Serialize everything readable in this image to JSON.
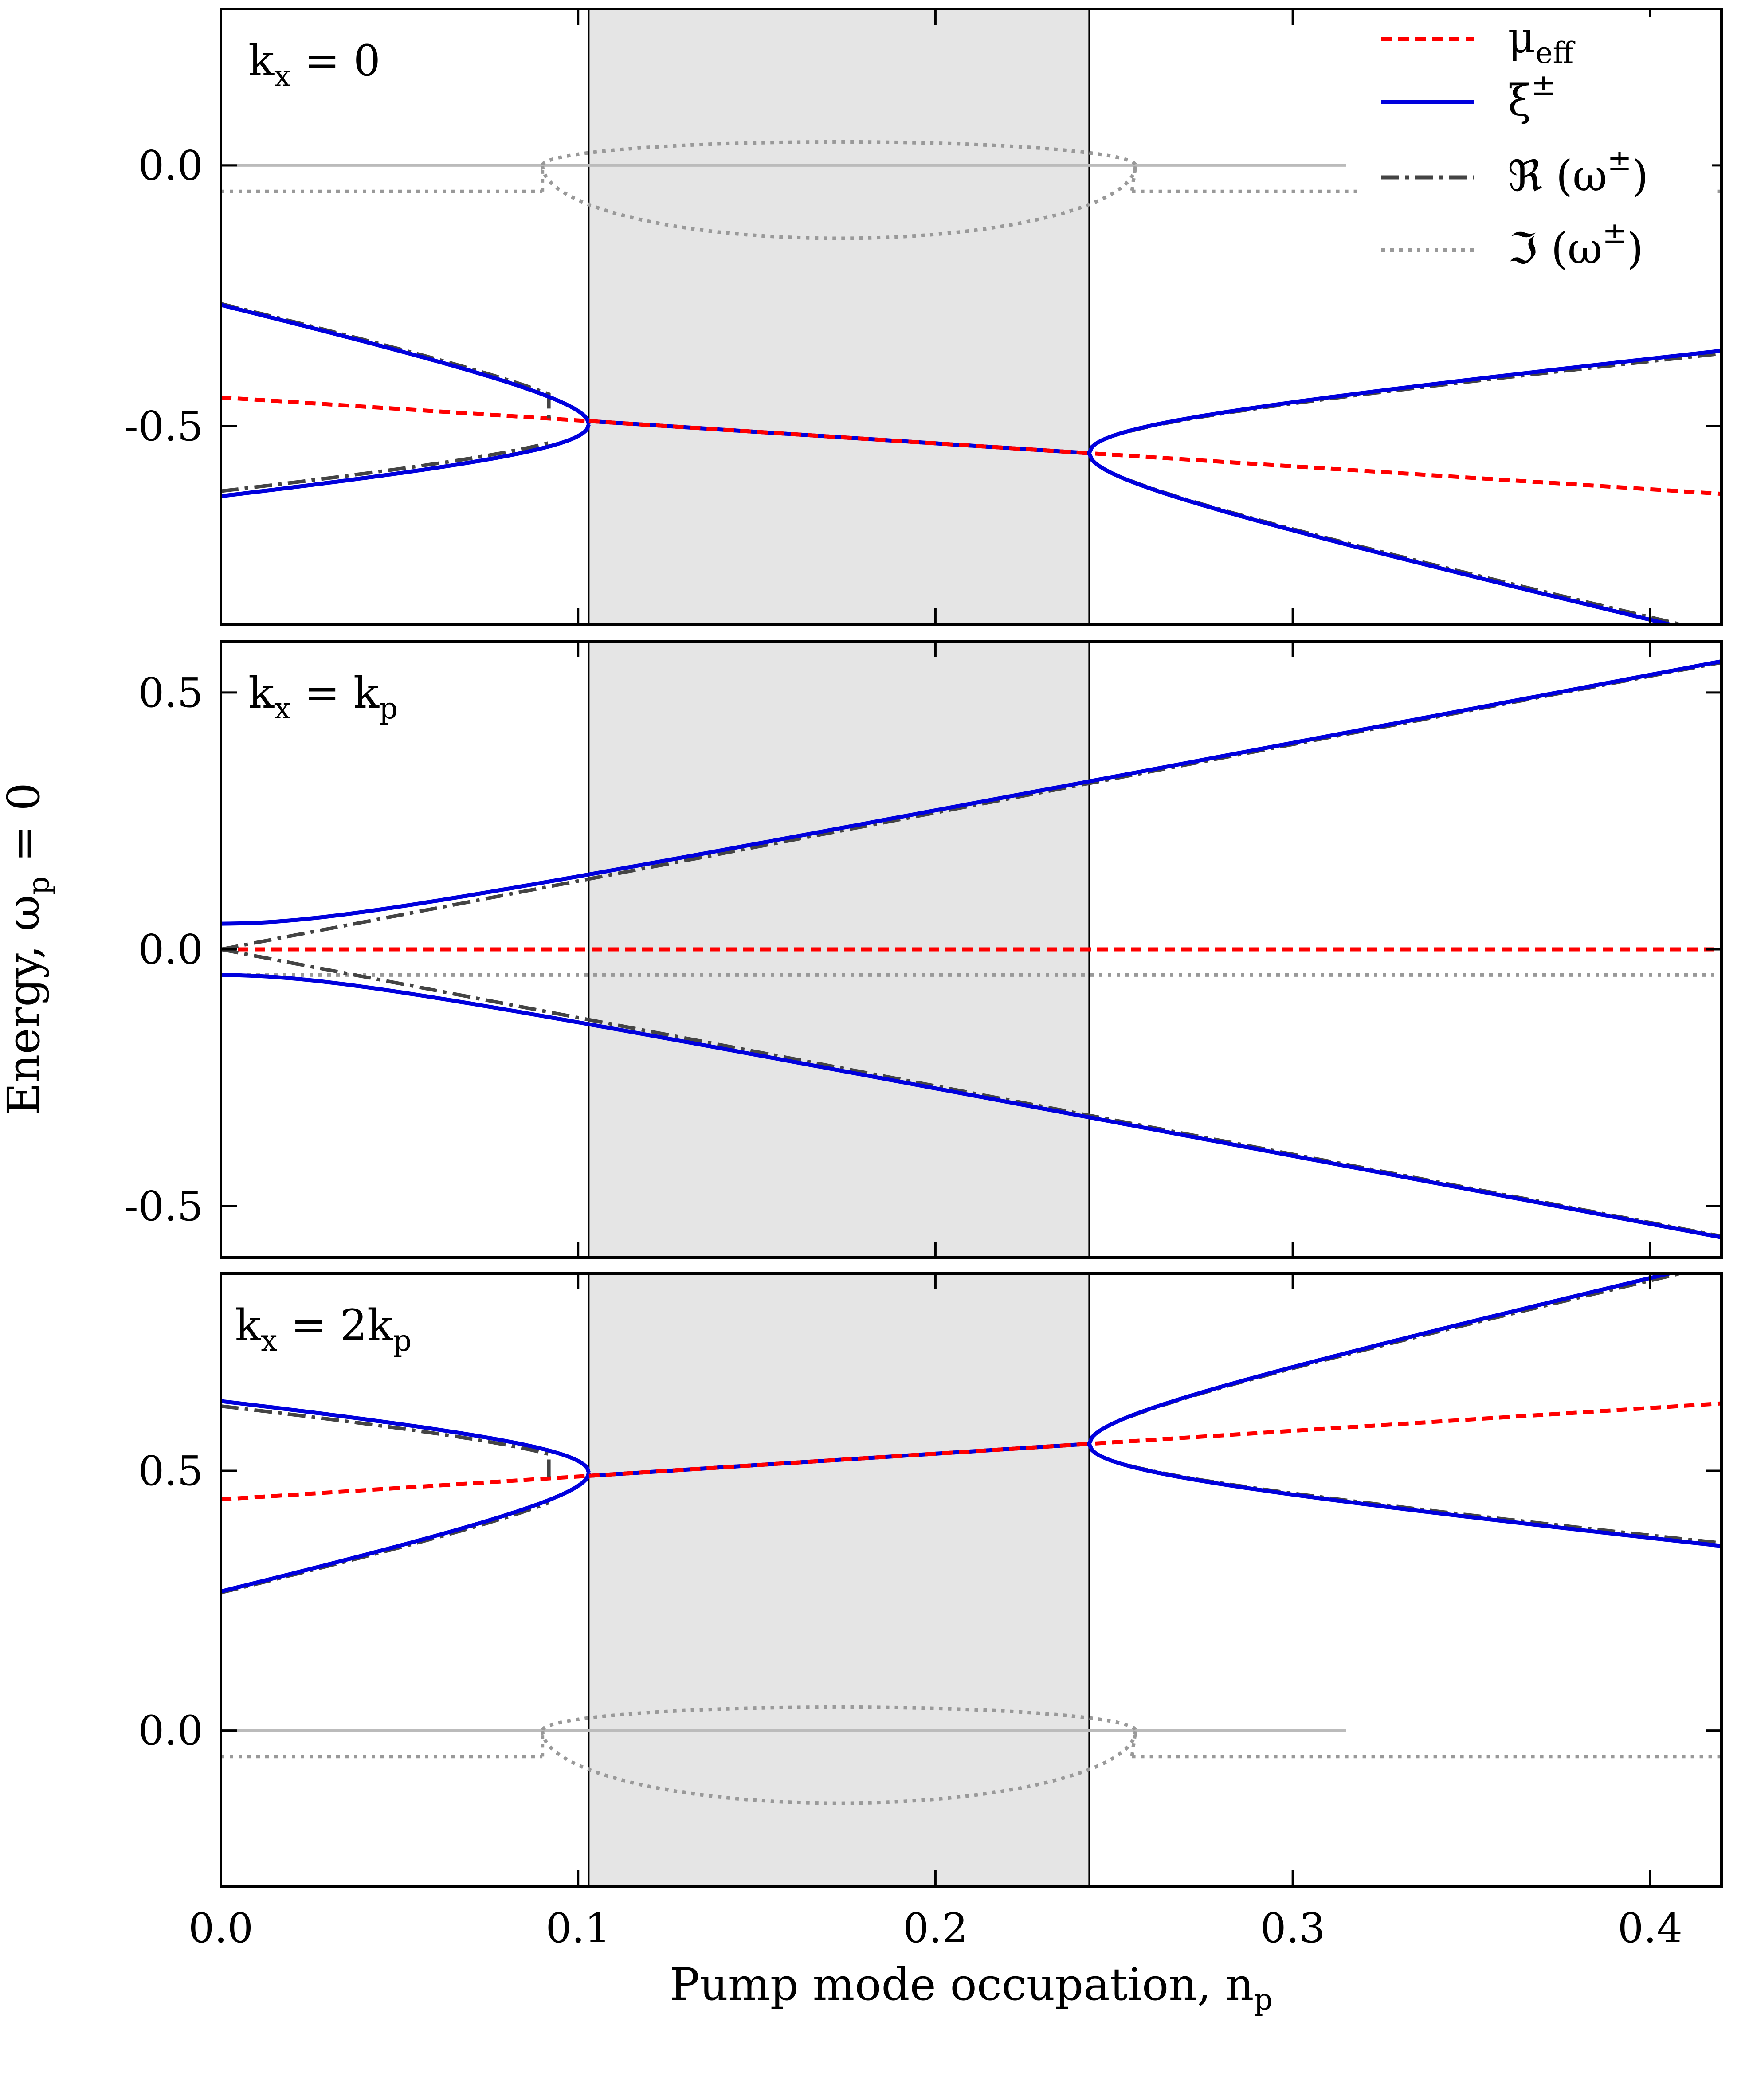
{
  "chart_data": {
    "type": "line",
    "xlabel": "Pump mode occupation, n",
    "xlabel_sub": "p",
    "ylabel": "Energy, ω",
    "ylabel_sub": "p",
    "ylabel_suffix": " = 0",
    "xlim": [
      0,
      0.42
    ],
    "x_ticks": [
      0.0,
      0.1,
      0.2,
      0.3,
      0.4
    ],
    "x_tick_labels": [
      "0.0",
      "0.1",
      "0.2",
      "0.3",
      "0.4"
    ],
    "unstable_region": [
      0.103,
      0.243
    ],
    "colors": {
      "mu_eff": "#ff0000",
      "xi": "#0000dd",
      "re_omega": "#444444",
      "im_omega": "#999999",
      "zero_line": "#bbbbbb",
      "shade": "#e5e5e5"
    },
    "legend": [
      {
        "key": "mu_eff",
        "label": "μ",
        "sub": "eff",
        "sup": ""
      },
      {
        "key": "xi",
        "label": "ξ",
        "sub": "",
        "sup": "±"
      },
      {
        "key": "re_omega",
        "label": "ℜ (ω",
        "sub": "",
        "sup": "±",
        "tail": ")"
      },
      {
        "key": "im_omega",
        "label": "ℑ (ω",
        "sub": "",
        "sup": "±",
        "tail": ")"
      }
    ],
    "panels": [
      {
        "label": "k",
        "label_sub": "x",
        "label_suffix": " = 0",
        "ylim": [
          -0.88,
          0.3
        ],
        "y_ticks": [
          0.0,
          -0.5
        ],
        "y_tick_labels": [
          "0.0",
          "-0.5"
        ],
        "params": {
          "mu0": -0.445,
          "mu_slope": -0.44,
          "A": 0.1833,
          "B": 0.3467,
          "im_out": -0.05,
          "im_in_top": 0.045,
          "im_in_bot": -0.14
        }
      },
      {
        "label": "k",
        "label_sub": "x",
        "label_suffix": " = k",
        "label_suffix_sub": "p",
        "ylim": [
          -0.6,
          0.6
        ],
        "y_ticks": [
          0.5,
          0.0,
          -0.5
        ],
        "y_tick_labels": [
          "0.5",
          "0.0",
          "-0.5"
        ],
        "params": {
          "mu0": 0.0,
          "mu_slope": 0.0,
          "gap": 0.05,
          "slope": 1.33,
          "im_out": -0.05
        }
      },
      {
        "label": "k",
        "label_sub": "x",
        "label_suffix": " = 2k",
        "label_suffix_sub": "p",
        "ylim": [
          -0.3,
          0.88
        ],
        "y_ticks": [
          0.5,
          0.0
        ],
        "y_tick_labels": [
          "0.5",
          "0.0"
        ],
        "params": {
          "mu0": 0.445,
          "mu_slope": 0.44,
          "A": 0.1833,
          "B": 0.3467,
          "im_out": -0.05,
          "im_in_top": 0.045,
          "im_in_bot": -0.14
        }
      }
    ]
  }
}
